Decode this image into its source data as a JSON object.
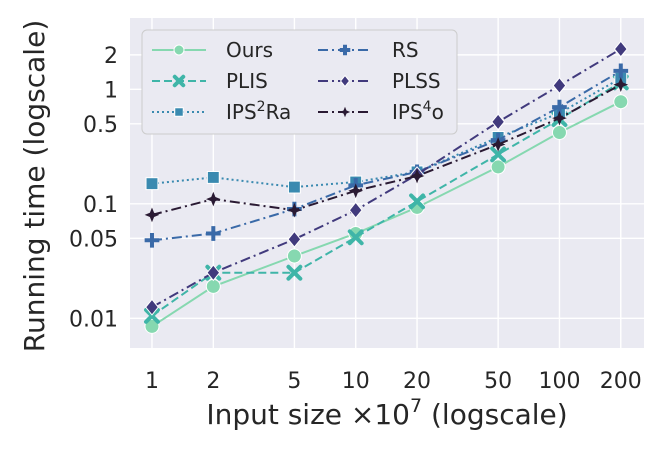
{
  "chart_data": {
    "type": "line",
    "xlabel": "Input size ×10⁷ (logscale)",
    "ylabel": "Running time (logscale)",
    "xscale": "log",
    "yscale": "log",
    "x": [
      1,
      2,
      5,
      10,
      20,
      50,
      100,
      200
    ],
    "xticks": [
      1,
      2,
      5,
      10,
      20,
      50,
      100,
      200
    ],
    "xtick_labels": [
      "1",
      "2",
      "5",
      "10",
      "20",
      "50",
      "100",
      "200"
    ],
    "yticks": [
      0.01,
      0.05,
      0.1,
      0.5,
      1,
      2
    ],
    "ytick_labels": [
      "0.01",
      "0.05",
      "0.1",
      "0.5",
      "1",
      "2"
    ],
    "xlim": [
      0.78,
      260
    ],
    "ylim": [
      0.0055,
      4.2
    ],
    "grid": true,
    "legend": {
      "placement": "top-left",
      "columns": 2
    },
    "series": [
      {
        "name": "Ours",
        "label_main": "Ours",
        "label_sup": "",
        "color": "#86d8b0",
        "dash": "solid",
        "marker": "circle",
        "values": [
          0.0085,
          0.019,
          0.035,
          0.055,
          0.093,
          0.21,
          0.42,
          0.78
        ]
      },
      {
        "name": "PLIS",
        "label_main": "PLIS",
        "label_sup": "",
        "color": "#3fb5a8",
        "dash": "dashed",
        "marker": "x",
        "values": [
          0.0105,
          0.025,
          0.025,
          0.051,
          0.105,
          0.27,
          0.55,
          1.15
        ]
      },
      {
        "name": "IPS2Ra",
        "label_main": "IPS",
        "label_sup": "2",
        "label_tail": "Ra",
        "color": "#3a8ab0",
        "dash": "dotted",
        "marker": "square",
        "values": [
          0.15,
          0.17,
          0.14,
          0.155,
          0.19,
          0.38,
          0.62,
          1.25
        ]
      },
      {
        "name": "RS",
        "label_main": "RS",
        "label_sup": "",
        "color": "#3a6aa8",
        "dash": "dashdot",
        "marker": "plus",
        "values": [
          0.048,
          0.055,
          0.09,
          0.145,
          0.19,
          0.36,
          0.7,
          1.45
        ]
      },
      {
        "name": "PLSS",
        "label_main": "PLSS",
        "label_sup": "",
        "color": "#413a7d",
        "dash": "dashdot",
        "marker": "diamond",
        "values": [
          0.0125,
          0.025,
          0.049,
          0.088,
          0.18,
          0.52,
          1.08,
          2.25
        ]
      },
      {
        "name": "IPS4o",
        "label_main": "IPS",
        "label_sup": "4",
        "label_tail": "o",
        "color": "#2a1a33",
        "dash": "dashdot",
        "marker": "star4",
        "values": [
          0.08,
          0.11,
          0.088,
          0.13,
          0.175,
          0.33,
          0.56,
          1.1
        ]
      }
    ]
  }
}
